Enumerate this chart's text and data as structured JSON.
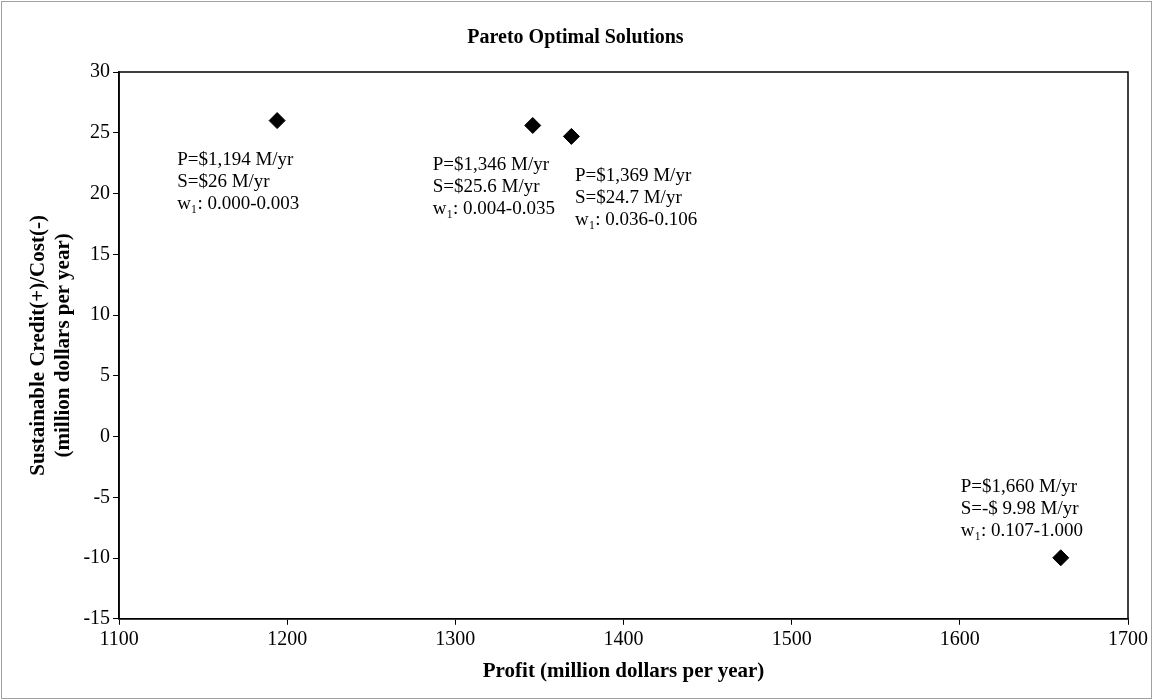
{
  "chart_data": {
    "type": "scatter",
    "title": "Pareto Optimal Solutions",
    "xlabel": "Profit (million dollars per year)",
    "ylabel": "Sustainable Credit(+)/Cost(-)\n(million dollars per year)",
    "x": [
      1194,
      1346,
      1369,
      1660
    ],
    "values": [
      26,
      25.6,
      24.7,
      -9.98
    ],
    "color": "#000000",
    "marker": "diamond",
    "grid": false,
    "legend": false,
    "xlim": [
      1100,
      1700
    ],
    "xticks": [
      1100,
      1200,
      1300,
      1400,
      1500,
      1600,
      1700
    ],
    "ylim": [
      -15,
      30
    ],
    "yticks": [
      -15,
      -10,
      -5,
      0,
      5,
      10,
      15,
      20,
      25,
      30
    ],
    "annotations": [
      {
        "text": "P=$1,194 M/yr\nS=$26 M/yr\nw₁: 0.000-0.003",
        "x": 1194,
        "y": 26
      },
      {
        "text": "P=$1,346 M/yr\nS=$25.6 M/yr\nw₁: 0.004-0.035",
        "x": 1346,
        "y": 25.6
      },
      {
        "text": "P=$1,369 M/yr\nS=$24.7 M/yr\nw₁: 0.036-0.106",
        "x": 1369,
        "y": 24.7
      },
      {
        "text": "P=$1,660 M/yr\nS=-$ 9.98 M/yr\nw₁: 0.107-1.000",
        "x": 1660,
        "y": -9.98
      }
    ]
  }
}
